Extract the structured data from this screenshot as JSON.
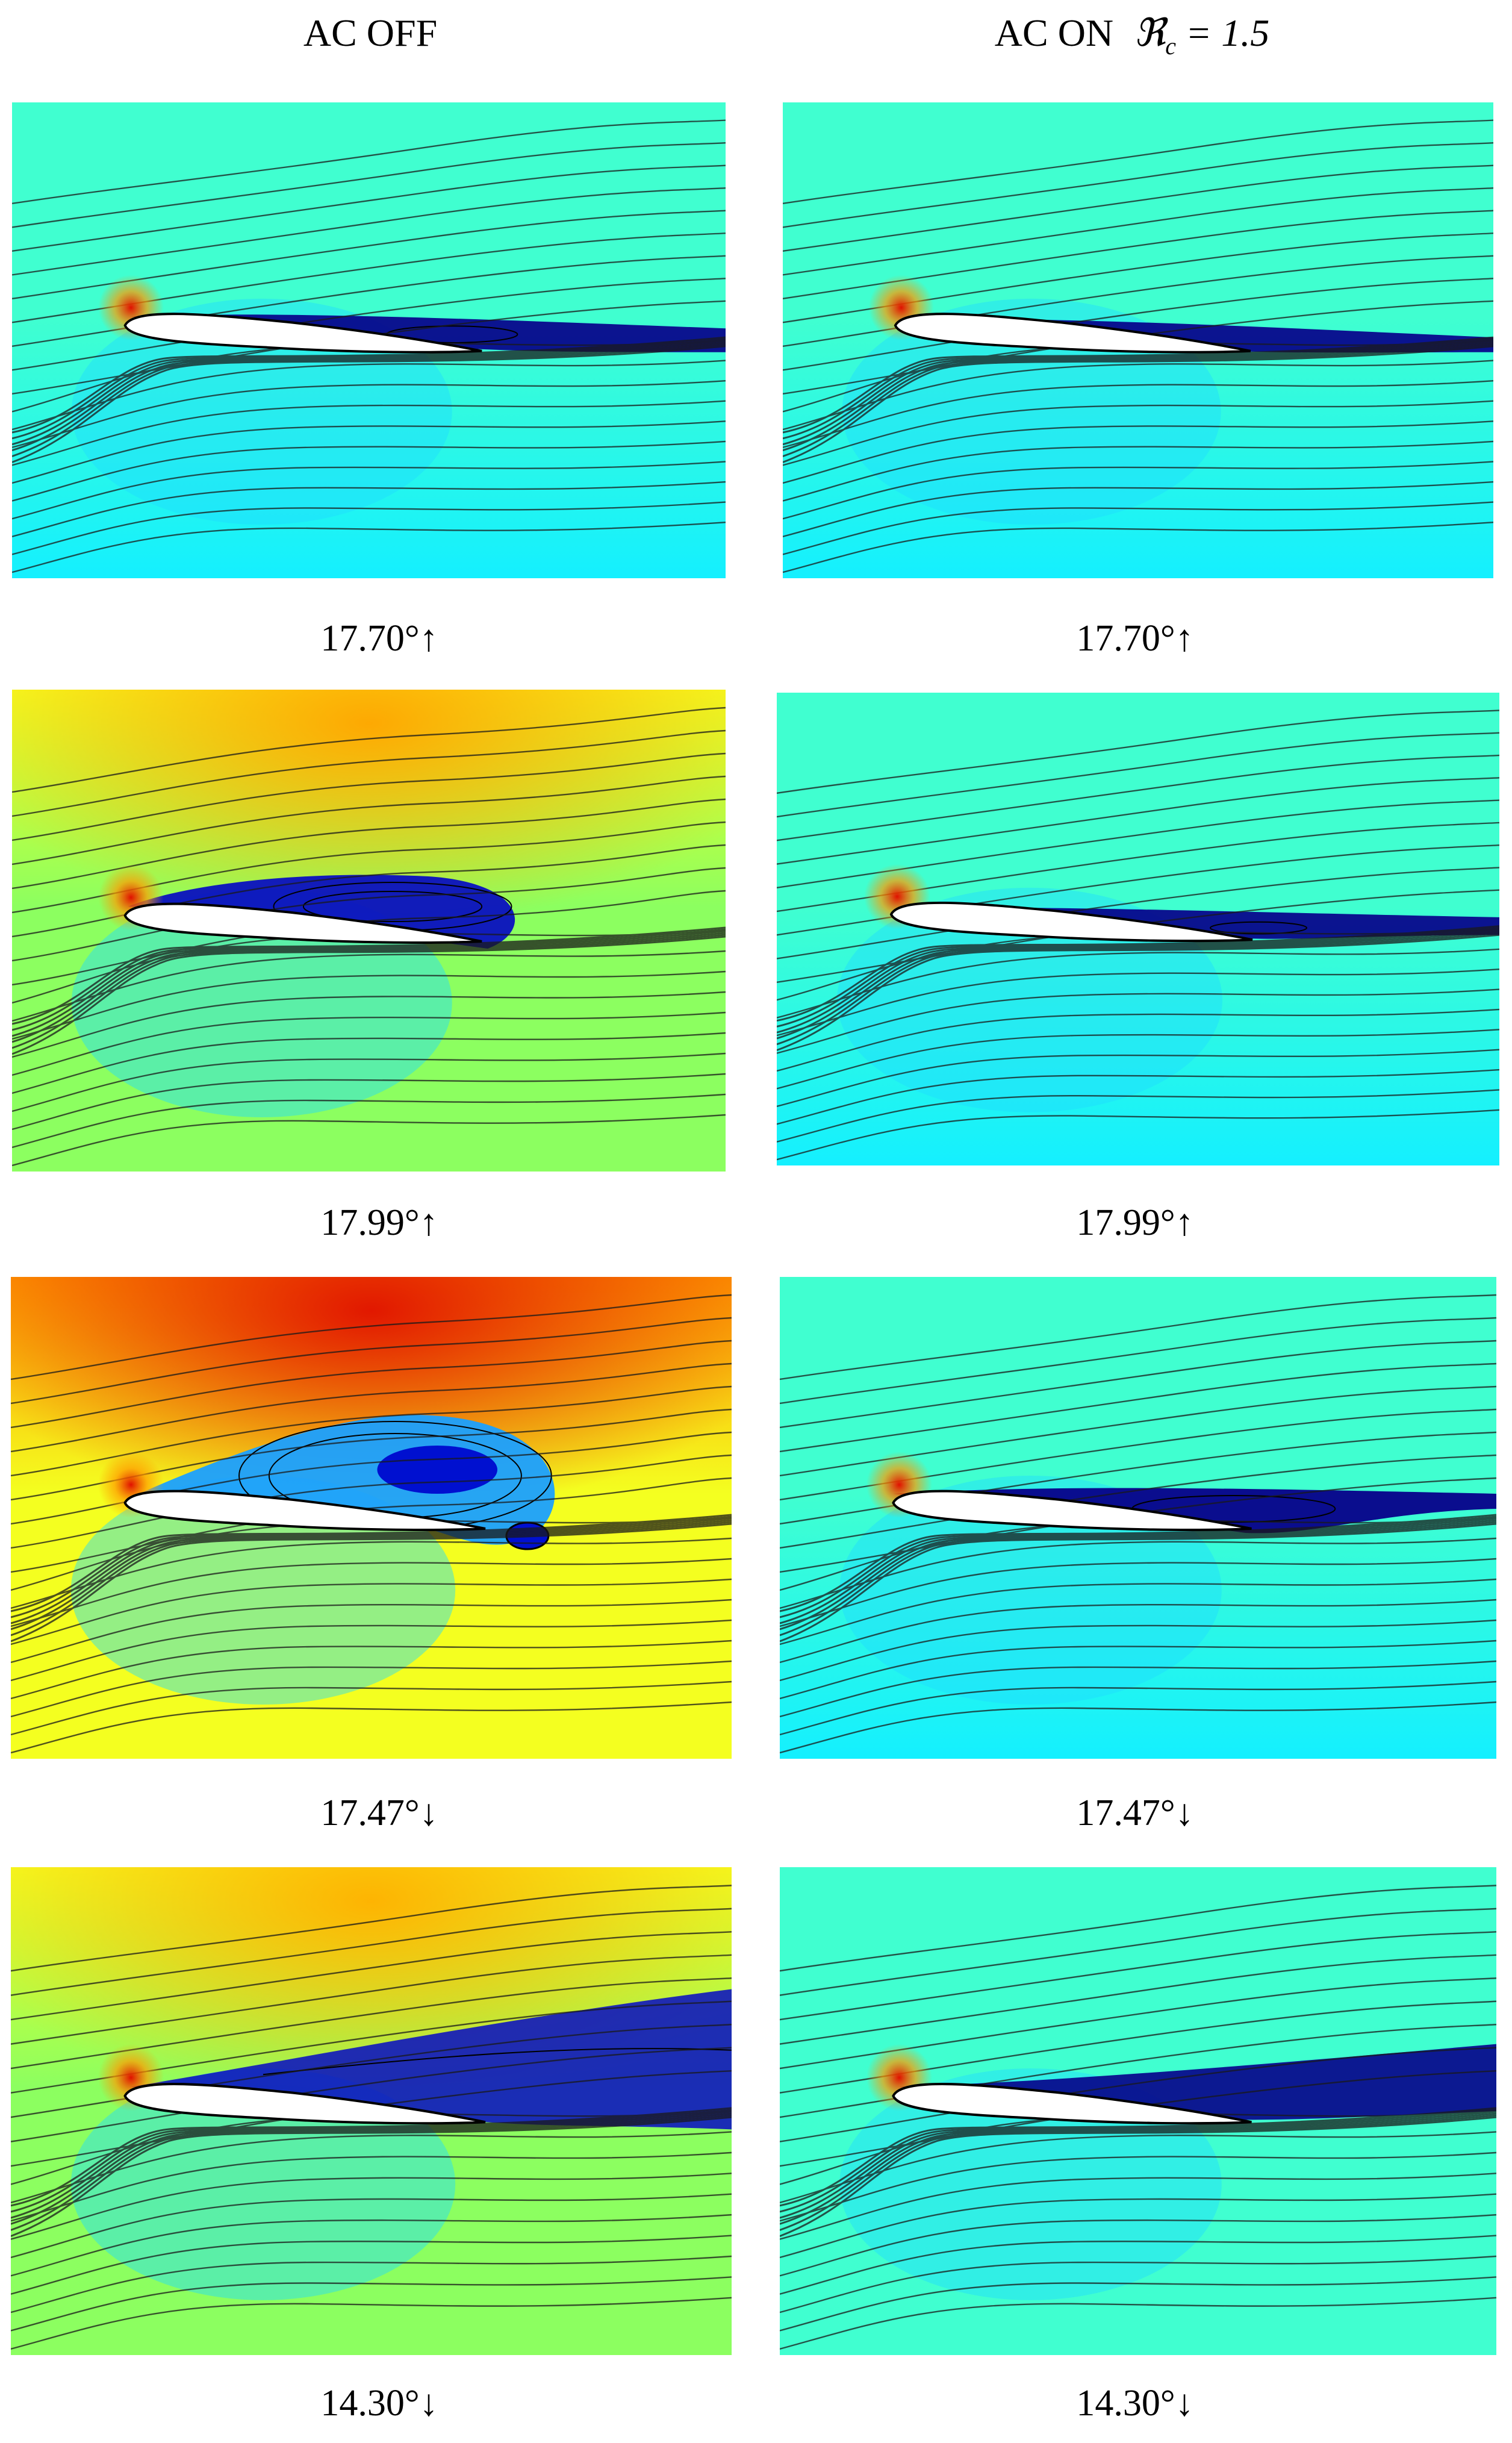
{
  "columns": [
    {
      "title": "AC OFF"
    },
    {
      "title": "AC ON",
      "param_symbol": "ℜ",
      "param_sub": "c",
      "param_rest": " = 1.5"
    }
  ],
  "colors": {
    "lowest": "#00007a",
    "low": "#0a3cff",
    "cyan": "#14f0ff",
    "teal": "#40ffd0",
    "green": "#8cff60",
    "yellow": "#f4ff20",
    "orange": "#ff9a00",
    "red": "#e01000",
    "dark_red": "#7a0000"
  },
  "rows": [
    {
      "left_caption": "17.70°↑",
      "right_caption": "17.70°↑",
      "left_field": "teal-cyan field, red stagnation spot, thin separated bubble",
      "right_field": "teal-cyan field, attached thin wake"
    },
    {
      "left_caption": "17.99°↑",
      "right_caption": "17.99°↑",
      "left_field": "yellow-orange top, large closed recirculation bubble",
      "right_field": "teal-cyan field, small bubble at trailing edge"
    },
    {
      "left_caption": "17.47°↓",
      "right_caption": "17.47°↓",
      "left_field": "red-orange field, dynamic stall vortex and trailing-edge vortex",
      "right_field": "teal-cyan field, closed bubble over aft upper surface"
    },
    {
      "left_caption": "14.30°↓",
      "right_caption": "14.30°↓",
      "left_field": "yellow-green field, massive separated wake",
      "right_field": "teal field, thin trailing wake"
    }
  ]
}
